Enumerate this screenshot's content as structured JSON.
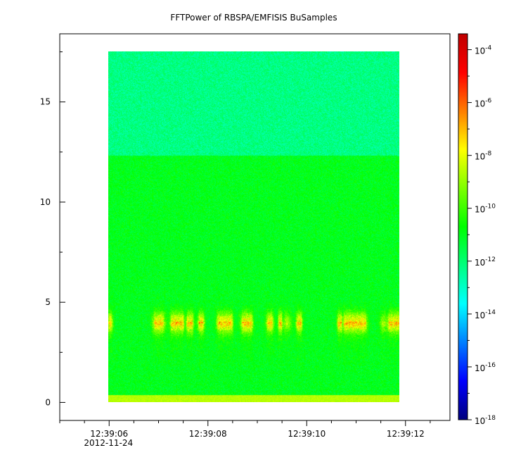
{
  "chart_data": {
    "type": "heatmap",
    "title": "FFTPower of RBSPA/EMFISIS  BuSamples",
    "xlabel": "",
    "ylabel": "",
    "x_ticks": [
      {
        "label": "12:39:06",
        "sublabel": "2012-11-24",
        "t": 6
      },
      {
        "label": "12:39:08",
        "t": 8
      },
      {
        "label": "12:39:10",
        "t": 10
      },
      {
        "label": "12:39:12",
        "t": 12
      }
    ],
    "xlim": [
      5.0,
      12.9
    ],
    "data_xrange": [
      5.95,
      11.9
    ],
    "y_ticks": [
      0,
      5,
      10,
      15
    ],
    "ylim": [
      -0.9,
      18.4
    ],
    "data_yrange": [
      0,
      17.5
    ],
    "colorbar": {
      "scale": "log",
      "ticks": [
        "-4",
        "-6",
        "-8",
        "-10",
        "-12",
        "-14",
        "-16",
        "-18"
      ],
      "tick_base": "10",
      "range_log10": [
        -18,
        -3.4
      ],
      "colormap": [
        "#00007f",
        "#0000ff",
        "#007fff",
        "#00ffff",
        "#00ff7f",
        "#00ff00",
        "#7fff00",
        "#ffff00",
        "#ff7f00",
        "#ff0000",
        "#c00000"
      ]
    },
    "features": {
      "band_center_y": 4.0,
      "background_low_log10": -11.0,
      "background_high_log10": -12.2,
      "transition_y": 12.3,
      "band_peak_log10": -7.2,
      "bottom_edge_log10": -8.6
    }
  }
}
